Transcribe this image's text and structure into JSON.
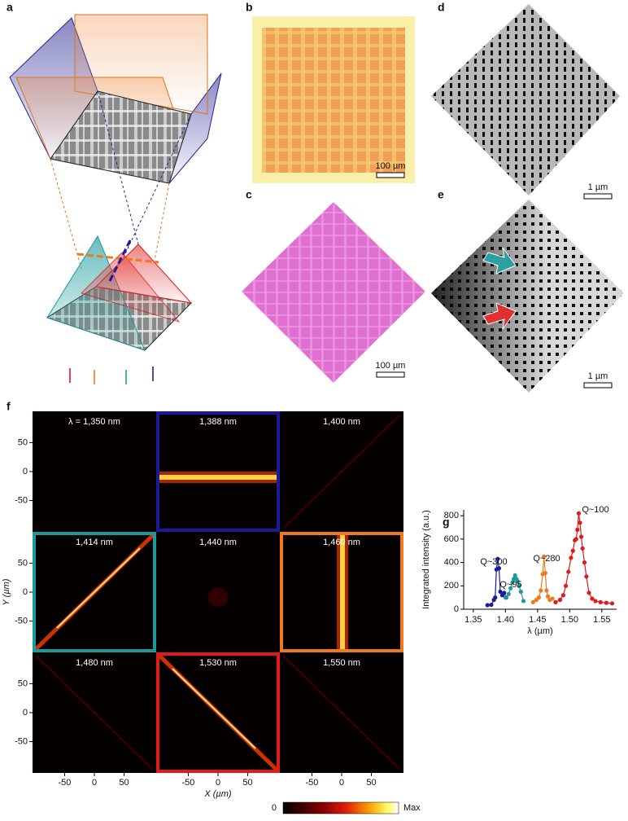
{
  "panel_labels": [
    "a",
    "b",
    "c",
    "d",
    "e",
    "f",
    "g"
  ],
  "scale_bars": {
    "b": "100 µm",
    "c": "100 µm",
    "d": "1 µm",
    "e": "1 µm"
  },
  "panel_f": {
    "cells": [
      {
        "label": "λ = 1,350 nm",
        "frame": null
      },
      {
        "label": "1,388 nm",
        "frame": "#1a1a9a"
      },
      {
        "label": "1,400 nm",
        "frame": null
      },
      {
        "label": "1,414 nm",
        "frame": "#1a9a9a"
      },
      {
        "label": "1,440 nm",
        "frame": null
      },
      {
        "label": "1,460 nm",
        "frame": "#f07a1a"
      },
      {
        "label": "1,480 nm",
        "frame": null
      },
      {
        "label": "1,530 nm",
        "frame": "#e01a1a"
      },
      {
        "label": "1,550 nm",
        "frame": null
      }
    ],
    "xlabel": "X (µm)",
    "ylabel": "Y (µm)",
    "xlim": [
      -104,
      104
    ],
    "ylim": [
      -104,
      104
    ],
    "xticks": [
      -50,
      0,
      50
    ],
    "yticks": [
      50,
      0,
      -50
    ],
    "colorbar": {
      "min_label": "0",
      "max_label": "Max"
    }
  },
  "chart_data": {
    "type": "line",
    "xlabel": "λ (µm)",
    "ylabel": "Integrated intensity (a.u.)",
    "xlim": [
      1.335,
      1.573
    ],
    "ylim": [
      0,
      850
    ],
    "xticks": [
      {
        "value": 1.35,
        "label": "1.35"
      },
      {
        "value": 1.4,
        "label": "1.40"
      },
      {
        "value": 1.45,
        "label": "1.45"
      },
      {
        "value": 1.5,
        "label": "1.50"
      },
      {
        "value": 1.55,
        "label": "1.55"
      }
    ],
    "yticks": [
      0,
      200,
      400,
      600,
      800
    ],
    "annotations": [
      "Q~300",
      "Q~95",
      "Q~280",
      "Q~100"
    ],
    "series": [
      {
        "color": "#1a1a9a",
        "x": [
          1.372,
          1.378,
          1.382,
          1.384,
          1.386,
          1.388,
          1.39,
          1.392,
          1.395,
          1.398,
          1.401
        ],
        "values": [
          35,
          38,
          80,
          100,
          340,
          430,
          350,
          150,
          120,
          140,
          100
        ]
      },
      {
        "color": "#1a9a9a",
        "x": [
          1.4,
          1.405,
          1.408,
          1.411,
          1.413,
          1.415,
          1.417,
          1.419,
          1.421,
          1.424,
          1.428
        ],
        "values": [
          100,
          130,
          180,
          230,
          260,
          290,
          260,
          240,
          200,
          150,
          70
        ]
      },
      {
        "color": "#f07a1a",
        "x": [
          1.443,
          1.448,
          1.452,
          1.455,
          1.458,
          1.46,
          1.462,
          1.464,
          1.466,
          1.469,
          1.473
        ],
        "values": [
          60,
          80,
          100,
          160,
          300,
          450,
          310,
          160,
          110,
          80,
          90
        ]
      },
      {
        "color": "#e01a1a",
        "x": [
          1.478,
          1.485,
          1.49,
          1.494,
          1.498,
          1.502,
          1.505,
          1.508,
          1.51,
          1.512,
          1.514,
          1.516,
          1.518,
          1.52,
          1.523,
          1.526,
          1.53,
          1.535,
          1.54,
          1.548,
          1.557,
          1.566
        ],
        "values": [
          60,
          80,
          120,
          200,
          320,
          440,
          500,
          590,
          600,
          680,
          820,
          740,
          620,
          520,
          400,
          280,
          140,
          90,
          70,
          60,
          55,
          50
        ]
      }
    ]
  }
}
